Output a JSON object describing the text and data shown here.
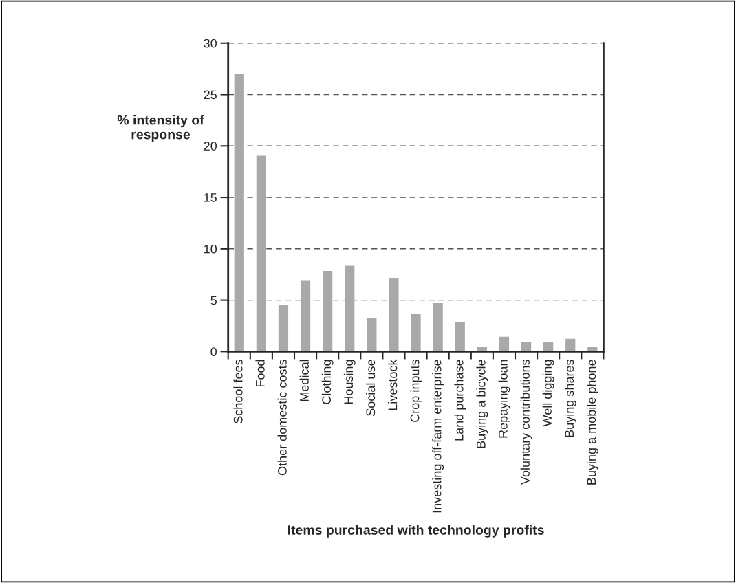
{
  "chart_data": {
    "type": "bar",
    "xlabel": "Items purchased with technology profits",
    "ylabel": "% intensity of\nresponse",
    "categories": [
      "School fees",
      "Food",
      "Other domestic costs",
      "Medical",
      "Clothing",
      "Housing",
      "Social use",
      "Livestock",
      "Crop inputs",
      "Investing off-farm enterprise",
      "Land purchase",
      "Buying a bicycle",
      "Repaying loan",
      "Voluntary contributions",
      "Well digging",
      "Buying shares",
      "Buying a mobile phone"
    ],
    "values": [
      27,
      19,
      4.5,
      6.9,
      7.8,
      8.3,
      3.2,
      7.1,
      3.6,
      4.7,
      2.8,
      0.4,
      1.4,
      0.9,
      0.9,
      1.2,
      0.4
    ],
    "color": "#a9a9a9",
    "ylim": [
      0,
      30
    ],
    "yticks": [
      0,
      5,
      10,
      15,
      20,
      25,
      30
    ],
    "grid": "y"
  }
}
